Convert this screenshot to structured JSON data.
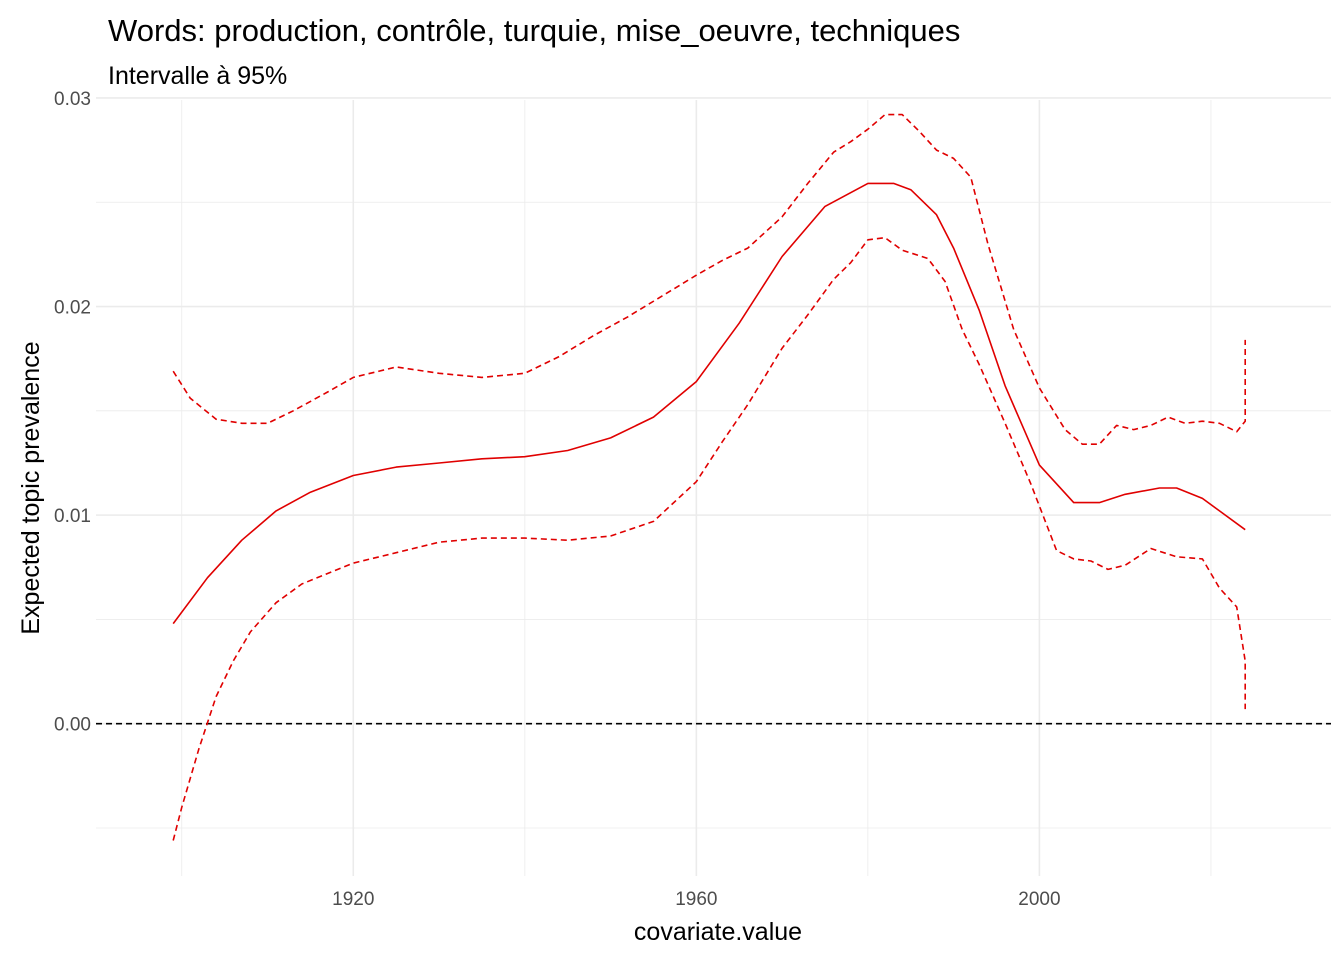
{
  "chart_data": {
    "type": "line",
    "title": "Words: production, contrôle, turquie, mise_oeuvre, techniques",
    "subtitle": "Intervalle à 95%",
    "xlabel": "covariate.value",
    "ylabel": "Expected topic prevalence",
    "xlim": [
      1890,
      2034
    ],
    "ylim": [
      -0.0073,
      0.0299
    ],
    "x_major_ticks": [
      1920,
      1960,
      2000
    ],
    "x_tick_labels": [
      "1920",
      "1960",
      "2000"
    ],
    "x_minor_ticks": [
      1900,
      1940,
      1980,
      2020
    ],
    "y_major_ticks": [
      0.0,
      0.01,
      0.02,
      0.03
    ],
    "y_tick_labels": [
      "0.00",
      "0.01",
      "0.02",
      "0.03"
    ],
    "y_minor_ticks": [
      -0.005,
      0.005,
      0.015,
      0.025
    ],
    "reference_line": {
      "y": 0,
      "style": "dashed",
      "color": "#000000"
    },
    "grid": true,
    "legend": "none",
    "colors": {
      "series": "#e00000",
      "grid": "#ebebeb",
      "reference": "#000000"
    },
    "series": [
      {
        "style": "solid",
        "x": [
          1899,
          1903,
          1907,
          1911,
          1915,
          1920,
          1925,
          1930,
          1935,
          1940,
          1945,
          1950,
          1955,
          1960,
          1965,
          1970,
          1975,
          1980,
          1983,
          1985,
          1988,
          1990,
          1993,
          1996,
          2000,
          2004,
          2007,
          2010,
          2014,
          2016,
          2019,
          2021,
          2024
        ],
        "y": [
          0.0048,
          0.007,
          0.0088,
          0.0102,
          0.0111,
          0.0119,
          0.0123,
          0.0125,
          0.0127,
          0.0128,
          0.0131,
          0.0137,
          0.0147,
          0.0164,
          0.0192,
          0.0224,
          0.0248,
          0.0259,
          0.0259,
          0.0256,
          0.0244,
          0.0228,
          0.0198,
          0.0162,
          0.0124,
          0.0106,
          0.0106,
          0.011,
          0.0113,
          0.0113,
          0.0108,
          0.0102,
          0.0093
        ]
      },
      {
        "style": "dashed",
        "x": [
          1899,
          1901,
          1904,
          1907,
          1910,
          1913,
          1917,
          1920,
          1925,
          1930,
          1935,
          1940,
          1944,
          1948,
          1952,
          1956,
          1960,
          1963,
          1966,
          1970,
          1973,
          1976,
          1978,
          1980,
          1982,
          1984,
          1986,
          1988,
          1990,
          1992,
          1994,
          1997,
          2000,
          2003,
          2005,
          2007,
          2009,
          2011,
          2013,
          2015,
          2017,
          2019,
          2021,
          2023,
          2024,
          2024
        ],
        "y": [
          0.0169,
          0.0156,
          0.0146,
          0.0144,
          0.0144,
          0.015,
          0.0159,
          0.0166,
          0.0171,
          0.0168,
          0.0166,
          0.0168,
          0.0176,
          0.0186,
          0.0195,
          0.0205,
          0.0215,
          0.0222,
          0.0228,
          0.0243,
          0.0259,
          0.0274,
          0.0279,
          0.0285,
          0.0292,
          0.0292,
          0.0284,
          0.0275,
          0.0271,
          0.0262,
          0.023,
          0.0189,
          0.0161,
          0.0141,
          0.0134,
          0.0134,
          0.0143,
          0.0141,
          0.0143,
          0.0147,
          0.0144,
          0.0145,
          0.0144,
          0.014,
          0.0145,
          0.0184
        ]
      },
      {
        "style": "dashed",
        "x": [
          1899,
          1900,
          1902,
          1904,
          1906,
          1908,
          1911,
          1914,
          1917,
          1920,
          1925,
          1930,
          1935,
          1940,
          1945,
          1950,
          1955,
          1960,
          1963,
          1966,
          1970,
          1973,
          1976,
          1978,
          1980,
          1982,
          1984,
          1987,
          1989,
          1991,
          1993,
          1996,
          1999,
          2002,
          2004,
          2006,
          2008,
          2010,
          2013,
          2016,
          2019,
          2021,
          2023,
          2024,
          2024
        ],
        "y": [
          -0.0056,
          -0.004,
          -0.0012,
          0.0013,
          0.003,
          0.0044,
          0.0058,
          0.0067,
          0.0072,
          0.0077,
          0.0082,
          0.0087,
          0.0089,
          0.0089,
          0.0088,
          0.009,
          0.0097,
          0.0116,
          0.0135,
          0.0153,
          0.018,
          0.0196,
          0.0213,
          0.0221,
          0.0232,
          0.0233,
          0.0227,
          0.0223,
          0.0212,
          0.0189,
          0.0172,
          0.0144,
          0.0115,
          0.0083,
          0.0079,
          0.0078,
          0.0074,
          0.0076,
          0.0084,
          0.008,
          0.0079,
          0.0065,
          0.0056,
          0.003,
          0.0007
        ]
      }
    ]
  }
}
